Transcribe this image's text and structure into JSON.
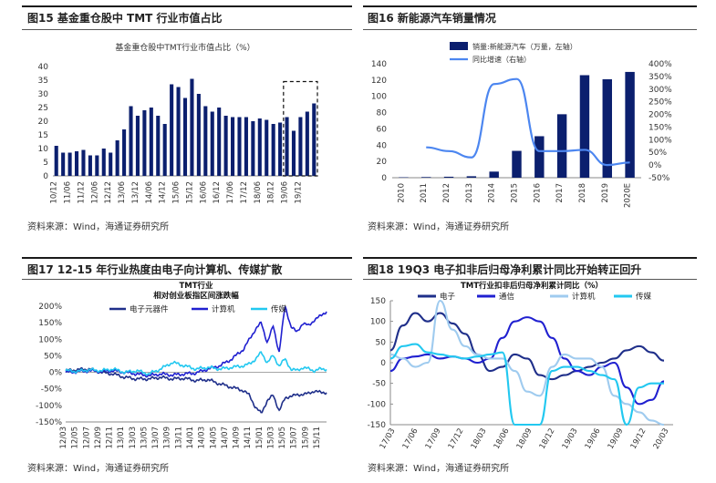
{
  "panels": [
    {
      "title": "图15 基金重仓股中 TMT 行业市值占比",
      "source": "资料来源：Wind，海通证券研究所"
    },
    {
      "title": "图16  新能源汽车销量情况",
      "source": "资料来源：Wind，海通证券研究所"
    },
    {
      "title": "图17 12-15 年行业热度由电子向计算机、传媒扩散",
      "source": "资料来源：Wind，海通证券研究所"
    },
    {
      "title": "图18  19Q3 电子扣非后归母净利累计同比开始转正回升",
      "source": "资料来源：Wind，海通证券研究所"
    }
  ],
  "chart_data": [
    {
      "type": "bar",
      "title": "基金重仓股中TMT行业市值占比（%）",
      "ylim": [
        0,
        40
      ],
      "yticks": [
        "0",
        "5",
        "10",
        "15",
        "20",
        "25",
        "30",
        "35",
        "40"
      ],
      "xticks": [
        "10/12",
        "11/06",
        "11/12",
        "12/06",
        "12/12",
        "13/06",
        "13/12",
        "14/06",
        "14/12",
        "15/06",
        "15/12",
        "16/06",
        "16/12",
        "17/06",
        "17/12",
        "18/06",
        "18/12",
        "19/06",
        "19/12"
      ],
      "values": [
        11,
        8.5,
        8.5,
        9,
        9.5,
        7.5,
        7.5,
        10,
        8.5,
        13,
        17,
        25.5,
        22,
        24,
        25,
        22,
        19,
        33.5,
        32.5,
        28.5,
        35.5,
        30,
        25.5,
        23.5,
        25,
        22,
        21.5,
        21.5,
        21.5,
        20,
        21,
        20.5,
        19,
        19.5,
        21.5,
        16.5,
        21.5,
        23.5,
        26.5
      ],
      "highlight": "dashed-box"
    },
    {
      "type": "bar+line",
      "categories": [
        "2010",
        "2011",
        "2012",
        "2013",
        "2014",
        "2015",
        "2016",
        "2017",
        "2018",
        "2019",
        "2020E"
      ],
      "series": [
        {
          "name": "销量:新能源汽车（万量，左轴）",
          "type": "bar",
          "values": [
            0.5,
            0.8,
            1.2,
            1.8,
            7.5,
            33,
            51,
            78,
            126,
            121,
            130
          ]
        },
        {
          "name": "同比增速（右轴）",
          "type": "line",
          "values": [
            null,
            70,
            55,
            30,
            320,
            340,
            55,
            55,
            60,
            0,
            10
          ]
        }
      ],
      "ylim_left": [
        0,
        140
      ],
      "yticks_left": [
        "0",
        "20",
        "40",
        "60",
        "80",
        "100",
        "120",
        "140"
      ],
      "ylim_right": [
        -50,
        400
      ],
      "yticks_right": [
        "-50%",
        "0%",
        "50%",
        "100%",
        "150%",
        "200%",
        "250%",
        "300%",
        "350%",
        "400%"
      ],
      "legend": "top-left"
    },
    {
      "type": "line",
      "title": "TMT行业",
      "subtitle": "相对创业板指区间涨跌幅",
      "ylim": [
        -150,
        200
      ],
      "yticks": [
        "-150%",
        "-100%",
        "-50%",
        "0%",
        "50%",
        "100%",
        "150%",
        "200%"
      ],
      "xticks": [
        "12/03",
        "12/05",
        "12/07",
        "12/09",
        "12/11",
        "13/01",
        "13/03",
        "13/05",
        "13/07",
        "13/09",
        "13/11",
        "14/01",
        "14/03",
        "14/05",
        "14/07",
        "14/09",
        "14/11",
        "15/01",
        "15/03",
        "15/05",
        "15/07",
        "15/09",
        "15/11"
      ],
      "series": [
        {
          "name": "电子元器件",
          "color": "#1f2f8a",
          "keypoints": [
            [
              0,
              5
            ],
            [
              6,
              8
            ],
            [
              12,
              10
            ],
            [
              18,
              0
            ],
            [
              24,
              -5
            ],
            [
              30,
              -15
            ],
            [
              36,
              -20
            ],
            [
              42,
              -20
            ],
            [
              48,
              -15
            ],
            [
              54,
              -20
            ],
            [
              60,
              -18
            ],
            [
              66,
              -25
            ],
            [
              72,
              -22
            ],
            [
              78,
              -35
            ],
            [
              84,
              -45
            ],
            [
              90,
              -55
            ],
            [
              93,
              -70
            ],
            [
              96,
              -105
            ],
            [
              99,
              -125
            ],
            [
              102,
              -85
            ],
            [
              105,
              -70
            ],
            [
              108,
              -115
            ],
            [
              111,
              -80
            ],
            [
              114,
              -70
            ],
            [
              117,
              -70
            ],
            [
              120,
              -65
            ],
            [
              123,
              -65
            ],
            [
              126,
              -55
            ],
            [
              129,
              -62
            ],
            [
              132,
              -60
            ]
          ]
        },
        {
          "name": "计算机",
          "color": "#2020d0",
          "keypoints": [
            [
              0,
              0
            ],
            [
              6,
              2
            ],
            [
              12,
              5
            ],
            [
              18,
              3
            ],
            [
              24,
              5
            ],
            [
              30,
              0
            ],
            [
              36,
              -5
            ],
            [
              42,
              -10
            ],
            [
              48,
              -5
            ],
            [
              54,
              -8
            ],
            [
              60,
              -5
            ],
            [
              66,
              -2
            ],
            [
              72,
              10
            ],
            [
              78,
              20
            ],
            [
              84,
              40
            ],
            [
              90,
              70
            ],
            [
              93,
              100
            ],
            [
              96,
              130
            ],
            [
              99,
              150
            ],
            [
              102,
              90
            ],
            [
              105,
              140
            ],
            [
              108,
              60
            ],
            [
              111,
              200
            ],
            [
              114,
              140
            ],
            [
              117,
              120
            ],
            [
              120,
              150
            ],
            [
              123,
              140
            ],
            [
              126,
              160
            ],
            [
              129,
              170
            ],
            [
              132,
              185
            ]
          ]
        },
        {
          "name": "传媒",
          "color": "#22c8f0",
          "keypoints": [
            [
              0,
              5
            ],
            [
              6,
              3
            ],
            [
              12,
              8
            ],
            [
              18,
              5
            ],
            [
              24,
              10
            ],
            [
              30,
              0
            ],
            [
              36,
              5
            ],
            [
              42,
              -5
            ],
            [
              48,
              10
            ],
            [
              54,
              30
            ],
            [
              60,
              20
            ],
            [
              66,
              10
            ],
            [
              72,
              15
            ],
            [
              78,
              10
            ],
            [
              84,
              15
            ],
            [
              90,
              20
            ],
            [
              93,
              25
            ],
            [
              96,
              40
            ],
            [
              99,
              60
            ],
            [
              102,
              30
            ],
            [
              105,
              50
            ],
            [
              108,
              20
            ],
            [
              111,
              40
            ],
            [
              114,
              10
            ],
            [
              117,
              5
            ],
            [
              120,
              15
            ],
            [
              123,
              10
            ],
            [
              126,
              5
            ],
            [
              129,
              10
            ],
            [
              132,
              10
            ]
          ]
        }
      ],
      "legend": "top"
    },
    {
      "type": "line",
      "title": "TMT行业扣非后归母净利累计同比（%）",
      "ylim": [
        -150,
        150
      ],
      "yticks": [
        "-150",
        "-100",
        "-50",
        "0",
        "50",
        "100",
        "150"
      ],
      "xticks": [
        "17/03",
        "17/06",
        "17/09",
        "17/12",
        "18/03",
        "18/06",
        "18/09",
        "18/12",
        "19/03",
        "19/06",
        "19/09",
        "19/12",
        "20/03"
      ],
      "series": [
        {
          "name": "电子",
          "color": "#1f2f8a",
          "keypoints": [
            [
              0,
              30
            ],
            [
              0.5,
              90
            ],
            [
              1,
              120
            ],
            [
              1.5,
              100
            ],
            [
              2,
              120
            ],
            [
              2.5,
              95
            ],
            [
              3,
              70
            ],
            [
              3.5,
              20
            ],
            [
              4,
              -20
            ],
            [
              4.5,
              -10
            ],
            [
              5,
              20
            ],
            [
              5.5,
              10
            ],
            [
              6,
              -30
            ],
            [
              6.5,
              -40
            ],
            [
              7,
              -30
            ],
            [
              7.5,
              -20
            ],
            [
              8,
              -10
            ],
            [
              8.5,
              0
            ],
            [
              9,
              10
            ],
            [
              9.5,
              30
            ],
            [
              10,
              40
            ],
            [
              10.5,
              25
            ],
            [
              11,
              5
            ]
          ]
        },
        {
          "name": "通信",
          "color": "#2020d0",
          "keypoints": [
            [
              0,
              -20
            ],
            [
              0.5,
              10
            ],
            [
              1,
              15
            ],
            [
              1.5,
              20
            ],
            [
              2,
              10
            ],
            [
              2.5,
              15
            ],
            [
              3,
              10
            ],
            [
              3.5,
              0
            ],
            [
              4,
              10
            ],
            [
              4.5,
              60
            ],
            [
              5,
              100
            ],
            [
              5.5,
              110
            ],
            [
              6,
              100
            ],
            [
              6.5,
              60
            ],
            [
              7,
              10
            ],
            [
              7.5,
              -20
            ],
            [
              8,
              -30
            ],
            [
              8.5,
              -10
            ],
            [
              9,
              0
            ],
            [
              9.5,
              -60
            ],
            [
              10,
              -100
            ],
            [
              10.5,
              -90
            ],
            [
              11,
              -45
            ]
          ]
        },
        {
          "name": "计算机",
          "color": "#9fcbef",
          "keypoints": [
            [
              0,
              20
            ],
            [
              0.5,
              10
            ],
            [
              1,
              -10
            ],
            [
              1.5,
              0
            ],
            [
              2,
              150
            ],
            [
              2.5,
              80
            ],
            [
              3,
              40
            ],
            [
              3.5,
              20
            ],
            [
              4,
              10
            ],
            [
              4.5,
              10
            ],
            [
              5,
              -20
            ],
            [
              5.5,
              -70
            ],
            [
              6,
              -80
            ],
            [
              6.5,
              -10
            ],
            [
              7,
              20
            ],
            [
              7.5,
              10
            ],
            [
              8,
              10
            ],
            [
              8.5,
              -10
            ],
            [
              9,
              -80
            ],
            [
              9.5,
              -100
            ],
            [
              10,
              -120
            ],
            [
              10.5,
              -140
            ],
            [
              11,
              -150
            ]
          ]
        },
        {
          "name": "传媒",
          "color": "#22c8f0",
          "keypoints": [
            [
              0,
              10
            ],
            [
              0.5,
              40
            ],
            [
              1,
              45
            ],
            [
              1.5,
              25
            ],
            [
              2,
              20
            ],
            [
              2.5,
              15
            ],
            [
              3,
              10
            ],
            [
              3.5,
              15
            ],
            [
              4,
              20
            ],
            [
              4.5,
              25
            ],
            [
              5,
              -150
            ],
            [
              5.5,
              -150
            ],
            [
              6,
              -150
            ],
            [
              6.5,
              -20
            ],
            [
              7,
              -10
            ],
            [
              7.5,
              -10
            ],
            [
              8,
              -20
            ],
            [
              8.5,
              -30
            ],
            [
              9,
              -40
            ],
            [
              9.5,
              -150
            ],
            [
              10,
              -60
            ],
            [
              10.5,
              -50
            ],
            [
              11,
              -50
            ]
          ]
        }
      ],
      "legend": "top"
    }
  ]
}
